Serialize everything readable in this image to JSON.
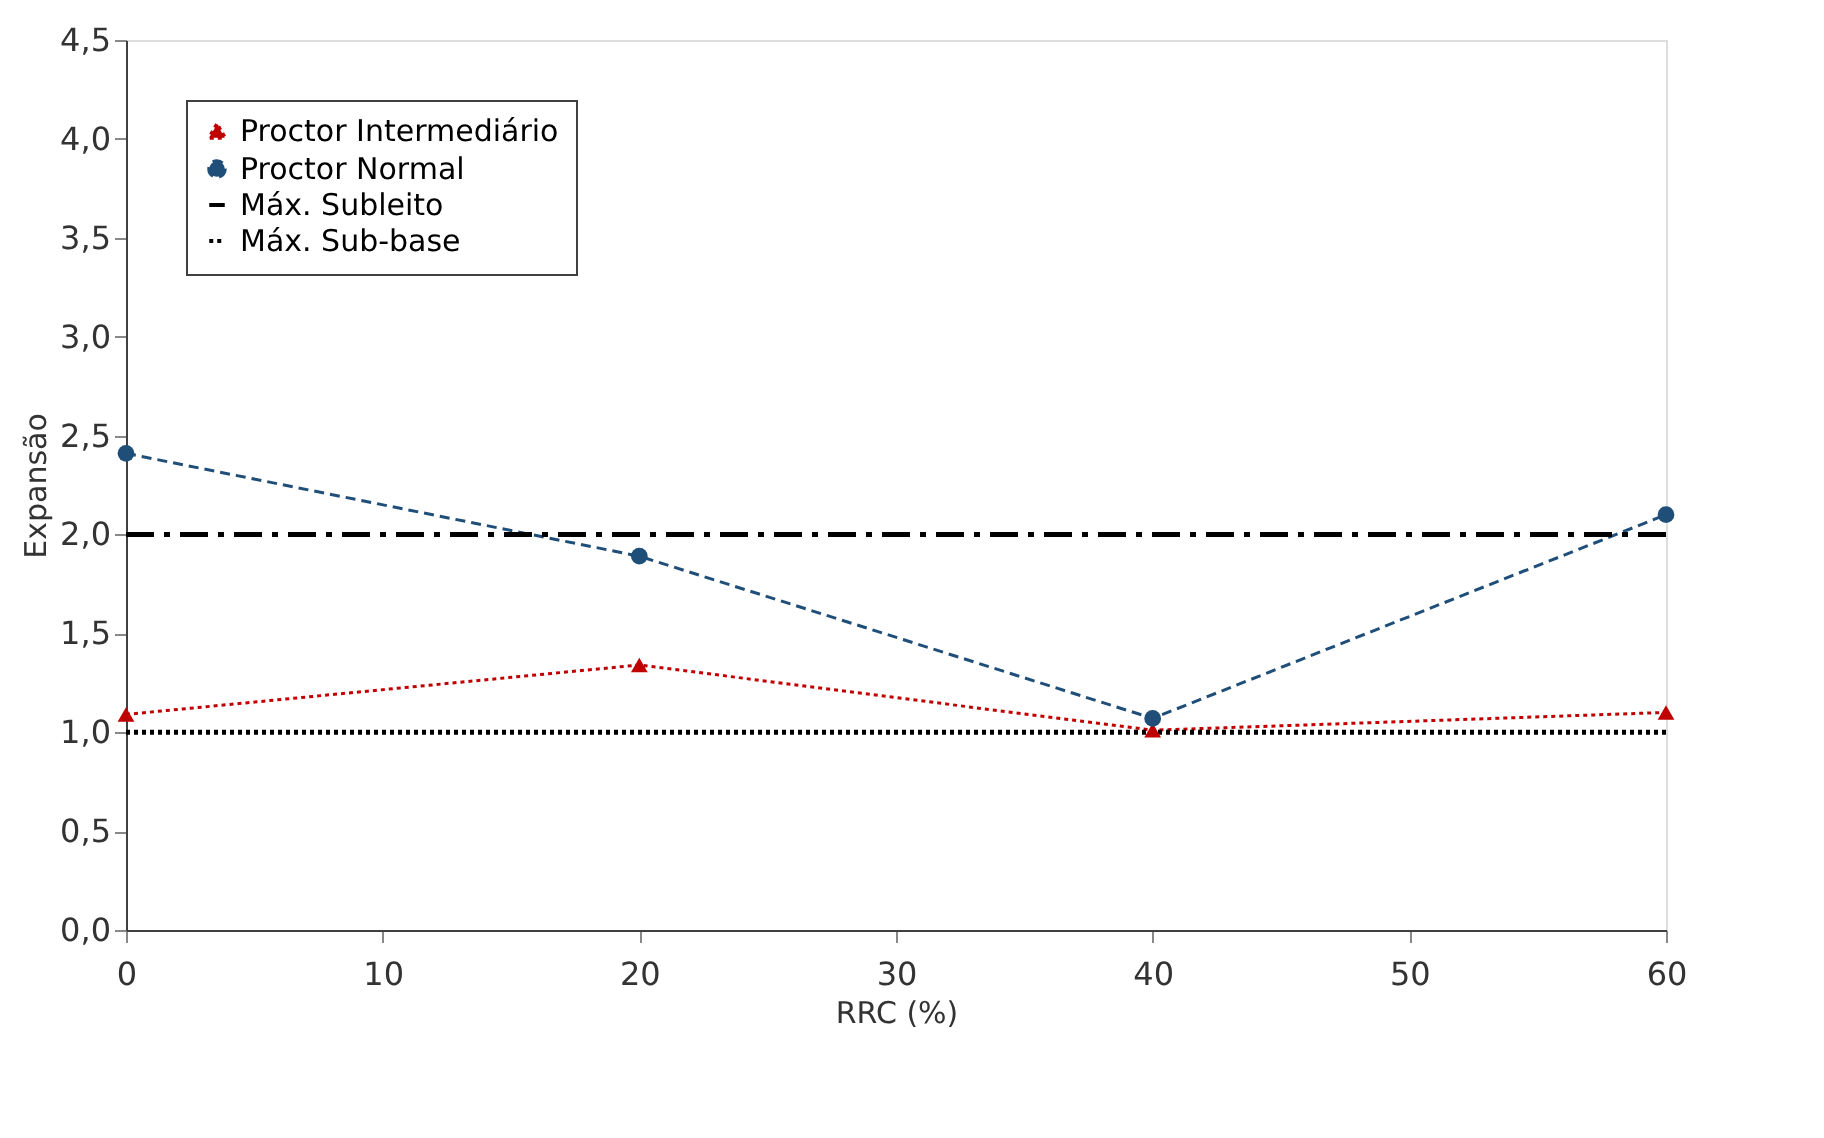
{
  "chart_data": {
    "type": "line",
    "xlabel": "RRC (%)",
    "ylabel": "Expansão",
    "x": [
      0,
      20,
      40,
      60
    ],
    "series": [
      {
        "name": "Proctor Intermediário",
        "color": "#c00000",
        "values": [
          1.09,
          1.34,
          1.01,
          1.1
        ],
        "marker": "triangle",
        "line_style": "dotted"
      },
      {
        "name": "Proctor Normal",
        "color": "#1f4e79",
        "values": [
          2.41,
          1.89,
          1.07,
          2.1
        ],
        "marker": "circle",
        "line_style": "dashed"
      }
    ],
    "ref_lines": [
      {
        "axis": "y",
        "value": 2.0,
        "label": "Máx. Subleito",
        "color": "#000000",
        "line_style": "dashdot"
      },
      {
        "axis": "y",
        "value": 1.0,
        "label": "Máx. Sub-base",
        "color": "#000000",
        "line_style": "dotted"
      }
    ],
    "xlim": [
      0,
      60
    ],
    "xticks": [
      0,
      10,
      20,
      30,
      40,
      50,
      60
    ],
    "ylim": [
      0,
      4.5
    ],
    "yticks": [
      {
        "value": 0,
        "label": "0,0"
      },
      {
        "value": 0.5,
        "label": "0,5"
      },
      {
        "value": 1,
        "label": "1,0"
      },
      {
        "value": 1.5,
        "label": "1,5"
      },
      {
        "value": 2,
        "label": "2,0"
      },
      {
        "value": 2.5,
        "label": "2,5"
      },
      {
        "value": 3,
        "label": "3,0"
      },
      {
        "value": 3.5,
        "label": "3,5"
      },
      {
        "value": 4,
        "label": "4,0"
      },
      {
        "value": 4.5,
        "label": "4,5"
      }
    ],
    "grid": false,
    "legend": "top left"
  }
}
